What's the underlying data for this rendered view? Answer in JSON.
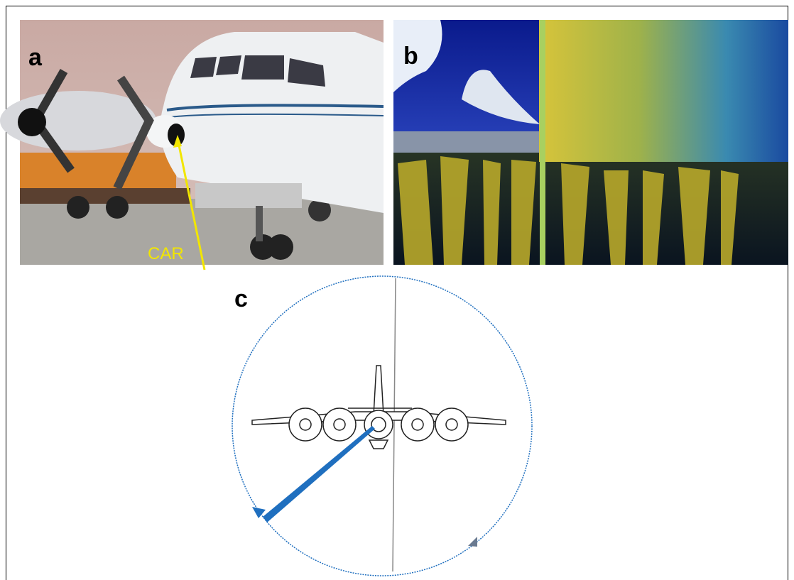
{
  "panels": [
    {
      "label": "a",
      "annotation": "CAR"
    },
    {
      "label": "b"
    },
    {
      "label": "c"
    }
  ]
}
